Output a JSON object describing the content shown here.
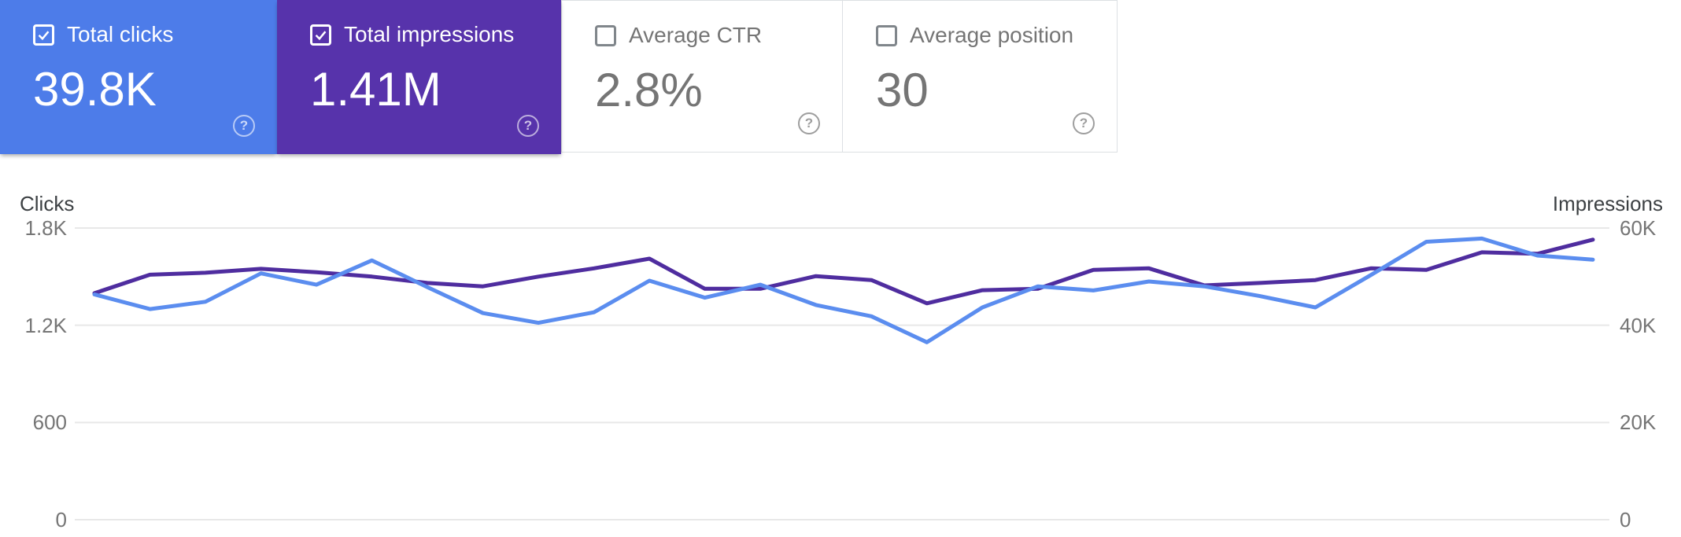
{
  "cards": [
    {
      "label": "Total clicks",
      "value": "39.8K",
      "checked": true,
      "bg": "#4d7ce9"
    },
    {
      "label": "Total impressions",
      "value": "1.41M",
      "checked": true,
      "bg": "#5733ab"
    },
    {
      "label": "Average CTR",
      "value": "2.8%",
      "checked": false,
      "bg": null
    },
    {
      "label": "Average position",
      "value": "30",
      "checked": false,
      "bg": null
    }
  ],
  "icons": {
    "help_glyph": "?",
    "checkbox_checked": "checked-checkbox",
    "checkbox_unchecked": "empty-checkbox"
  },
  "colors": {
    "clicks_card_blue": "#4d7ce9",
    "impressions_card_purple": "#5733ab",
    "clicks_line_blue": "#5b8def",
    "impressions_line_purple": "#4f2d9f",
    "grid_line": "#e8e8e8",
    "tick_text": "#757575",
    "axis_title_text": "#3c4043",
    "card_border": "#dce0e3",
    "card_muted_text": "#757575"
  },
  "chart_data": {
    "type": "line",
    "grid": true,
    "legend_position": "none",
    "x_tick_labels_visible": false,
    "num_points": 28,
    "left_axis": {
      "title": "Clicks",
      "ticks": [
        "1.8K",
        "1.2K",
        "600",
        "0"
      ],
      "range": [
        0,
        1800
      ]
    },
    "right_axis": {
      "title": "Impressions",
      "ticks": [
        "60K",
        "40K",
        "20K",
        "0"
      ],
      "range": [
        0,
        60000
      ]
    },
    "series": [
      {
        "name": "Clicks",
        "axis": "left",
        "color": "#5b8def",
        "values": [
          1390,
          1300,
          1345,
          1520,
          1450,
          1600,
          1435,
          1275,
          1215,
          1280,
          1475,
          1370,
          1450,
          1325,
          1255,
          1095,
          1310,
          1440,
          1415,
          1470,
          1440,
          1380,
          1310,
          1510,
          1715,
          1735,
          1630,
          1605
        ]
      },
      {
        "name": "Impressions",
        "axis": "right",
        "color": "#4f2d9f",
        "values": [
          46600,
          50400,
          50800,
          51600,
          50900,
          50000,
          48700,
          48000,
          50000,
          51700,
          53700,
          47500,
          47500,
          50100,
          49300,
          44500,
          47200,
          47500,
          51400,
          51700,
          48200,
          48700,
          49300,
          51700,
          51400,
          55000,
          54700,
          57600
        ]
      }
    ]
  }
}
